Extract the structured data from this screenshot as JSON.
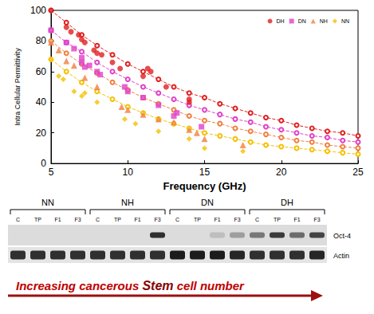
{
  "chart_data": {
    "type": "scatter",
    "x_label": "Frequency (GHz)",
    "y_label": "Intra Cellular Permittivity",
    "xlim": [
      5,
      25
    ],
    "xticks": [
      5,
      10,
      15,
      20,
      25
    ],
    "ylim": [
      0,
      100
    ],
    "yticks": [
      0,
      20,
      40,
      60,
      80,
      100
    ],
    "grid": false,
    "legend": "top-right",
    "series": [
      {
        "name": "DH",
        "color": "#e02020",
        "marker": "circle",
        "x": [
          5,
          6,
          6.3,
          6.8,
          7,
          7.2,
          7.8,
          8,
          8.3,
          9,
          9.5,
          11,
          11.3,
          11.5,
          12.5,
          14,
          14
        ],
        "values": [
          100,
          89,
          86,
          84,
          81,
          79,
          74,
          72,
          71,
          66,
          62,
          57,
          62,
          60,
          50,
          42,
          40
        ],
        "fit": {
          "line_style": "dashed",
          "marker": "circle",
          "x": [
            5,
            6,
            7,
            8,
            9,
            10,
            11,
            12,
            13,
            14,
            15,
            16,
            17,
            18,
            19,
            20,
            21,
            22,
            23,
            24,
            25
          ],
          "values": [
            100,
            92,
            84,
            77,
            71,
            65,
            60,
            55,
            50,
            46,
            43,
            39,
            36,
            33,
            30,
            28,
            25,
            23,
            21,
            20,
            18
          ]
        }
      },
      {
        "name": "DN",
        "color": "#e040c8",
        "marker": "square",
        "x": [
          5,
          6,
          6.5,
          7,
          7,
          7.2,
          7.5,
          8,
          8.2,
          9.8,
          10,
          11,
          12,
          13,
          13.2,
          14.8
        ],
        "values": [
          87,
          79,
          75,
          69,
          66,
          63,
          64,
          60,
          58,
          50,
          47,
          43,
          38,
          31,
          33,
          24
        ],
        "fit": {
          "line_style": "dashed",
          "marker": "circle",
          "x": [
            5,
            6,
            7,
            8,
            9,
            10,
            11,
            12,
            13,
            14,
            15,
            16,
            17,
            18,
            19,
            20,
            21,
            22,
            23,
            24,
            25
          ],
          "values": [
            87,
            79,
            73,
            66,
            60,
            55,
            50,
            46,
            42,
            38,
            35,
            32,
            29,
            27,
            24,
            22,
            20,
            18,
            17,
            15,
            14
          ]
        }
      },
      {
        "name": "NH",
        "color": "#f08040",
        "marker": "triangle",
        "x": [
          5,
          5.5,
          6,
          6.5,
          7.2,
          8,
          9.6,
          10,
          11,
          12,
          13,
          14,
          14.5,
          15,
          17.5
        ],
        "values": [
          79,
          74,
          67,
          64,
          56,
          50,
          37,
          35,
          32,
          29,
          27,
          22,
          20,
          16,
          12
        ],
        "fit": {
          "line_style": "dashed",
          "marker": "circle",
          "x": [
            5,
            6,
            7,
            8,
            9,
            10,
            11,
            12,
            13,
            14,
            15,
            16,
            17,
            18,
            19,
            20,
            21,
            22,
            23,
            24,
            25
          ],
          "values": [
            80,
            72,
            65,
            59,
            53,
            48,
            43,
            39,
            35,
            31,
            28,
            26,
            23,
            21,
            19,
            17,
            15,
            14,
            12,
            11,
            10
          ]
        }
      },
      {
        "name": "NN",
        "color": "#f5c000",
        "marker": "diamond",
        "x": [
          5,
          5.5,
          5.8,
          6.5,
          7,
          7.2,
          8,
          9.8,
          10.5,
          12,
          14,
          15,
          17.5
        ],
        "values": [
          68,
          57,
          55,
          47,
          44,
          46,
          40,
          29,
          26,
          21,
          16,
          10,
          8
        ],
        "fit": {
          "line_style": "dashed",
          "marker": "circle",
          "x": [
            5,
            6,
            7,
            8,
            9,
            10,
            11,
            12,
            13,
            14,
            15,
            16,
            17,
            18,
            19,
            20,
            21,
            22,
            23,
            24,
            25
          ],
          "values": [
            68,
            60,
            53,
            47,
            42,
            37,
            33,
            29,
            26,
            23,
            20,
            18,
            16,
            14,
            12,
            11,
            10,
            9,
            8,
            7,
            6
          ]
        }
      }
    ]
  },
  "blot": {
    "groups": [
      "NN",
      "NH",
      "DN",
      "DH"
    ],
    "lanes": [
      "C",
      "TP",
      "F1",
      "F3"
    ],
    "rows": [
      {
        "label": "Oct-4",
        "bands": [
          [
            0,
            0,
            0,
            0
          ],
          [
            0,
            0,
            0,
            0.85
          ],
          [
            0,
            0,
            0.15,
            0.3
          ],
          [
            0.5,
            0.8,
            0.55,
            0.75
          ]
        ]
      },
      {
        "label": "Actin",
        "bands": [
          [
            0.85,
            0.85,
            0.85,
            0.85
          ],
          [
            0.85,
            0.85,
            0.85,
            0.85
          ],
          [
            0.95,
            0.95,
            0.95,
            0.9
          ],
          [
            0.85,
            0.85,
            0.85,
            0.9
          ]
        ]
      }
    ],
    "arrow_text": "Increasing cancerous Stem cell number",
    "emphasis": "Stem"
  }
}
